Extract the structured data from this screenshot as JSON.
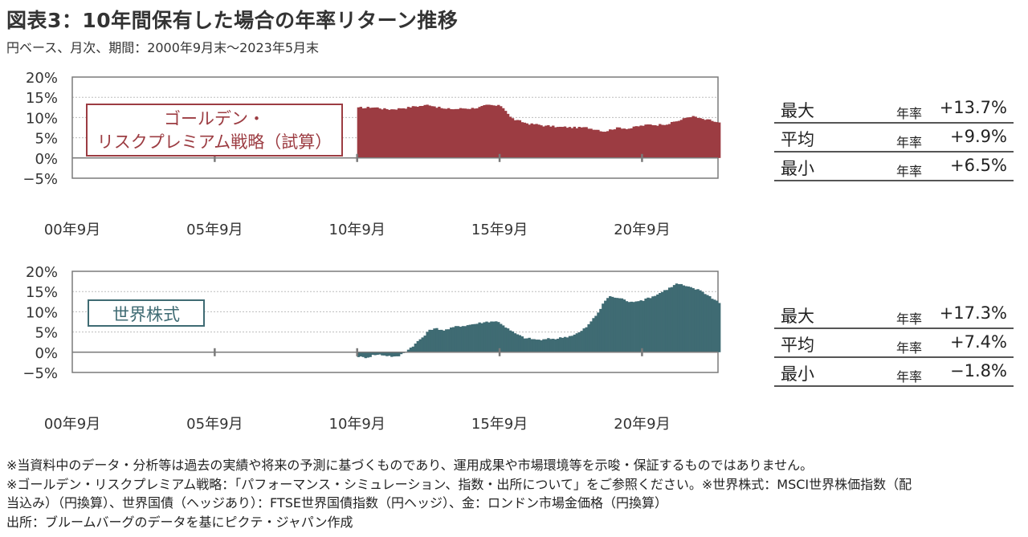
{
  "header": {
    "title": "図表3：10年間保有した場合の年率リターン推移",
    "subtitle": "円ベース、月次、期間：2000年9月末～2023年5月末"
  },
  "colors": {
    "series1": "#9c3c42",
    "series2": "#3f6b73",
    "axis": "#7a7a7a",
    "grid": "#bdbdbd"
  },
  "chart_data": [
    {
      "type": "area",
      "series": [
        {
          "name": "ゴールデン・リスクプレミアム戦略（試算）",
          "color": "#9c3c42"
        }
      ],
      "label_lines": [
        "ゴールデン・",
        "リスクプレミアム戦略（試算）"
      ],
      "x_labels": [
        "00年9月",
        "05年9月",
        "10年9月",
        "15年9月",
        "20年9月"
      ],
      "y_labels": [
        "20%",
        "15%",
        "10%",
        "5%",
        "0%",
        "−5%"
      ],
      "ylim": [
        -5,
        20
      ],
      "x_range": [
        "2000-09",
        "2023-05"
      ],
      "data_start": "2010-09",
      "points": [
        [
          "2010-09",
          12.3
        ],
        [
          "2011-03",
          12.6
        ],
        [
          "2011-09",
          12.0
        ],
        [
          "2012-03",
          12.4
        ],
        [
          "2012-09",
          12.8
        ],
        [
          "2013-03",
          13.2
        ],
        [
          "2013-09",
          12.0
        ],
        [
          "2014-03",
          12.2
        ],
        [
          "2014-09",
          12.4
        ],
        [
          "2015-03",
          12.9
        ],
        [
          "2015-09",
          12.8
        ],
        [
          "2015-11",
          11.5
        ],
        [
          "2016-01",
          9.6
        ],
        [
          "2016-06",
          8.7
        ],
        [
          "2017-01",
          8.1
        ],
        [
          "2017-09",
          7.6
        ],
        [
          "2018-06",
          7.5
        ],
        [
          "2019-01",
          7.2
        ],
        [
          "2019-04",
          6.6
        ],
        [
          "2019-09",
          7.5
        ],
        [
          "2020-03",
          7.4
        ],
        [
          "2020-09",
          8.1
        ],
        [
          "2021-03",
          8.3
        ],
        [
          "2021-09",
          8.8
        ],
        [
          "2022-03",
          10.0
        ],
        [
          "2022-05",
          10.5
        ],
        [
          "2022-09",
          9.5
        ],
        [
          "2023-01",
          9.2
        ],
        [
          "2023-05",
          8.5
        ]
      ],
      "stats": [
        {
          "label": "最大",
          "unit": "年率",
          "value": "+13.7%"
        },
        {
          "label": "平均",
          "unit": "年率",
          "value": "+9.9%"
        },
        {
          "label": "最小",
          "unit": "年率",
          "value": "+6.5%"
        }
      ]
    },
    {
      "type": "area",
      "series": [
        {
          "name": "世界株式",
          "color": "#3f6b73"
        }
      ],
      "label_lines": [
        "世界株式"
      ],
      "x_labels": [
        "00年9月",
        "05年9月",
        "10年9月",
        "15年9月",
        "20年9月"
      ],
      "y_labels": [
        "20%",
        "15%",
        "10%",
        "5%",
        "0%",
        "−5%"
      ],
      "ylim": [
        -5,
        20
      ],
      "x_range": [
        "2000-09",
        "2023-05"
      ],
      "data_start": "2010-09",
      "points": [
        [
          "2010-09",
          -1.0
        ],
        [
          "2010-11",
          -1.5
        ],
        [
          "2011-03",
          -0.5
        ],
        [
          "2011-09",
          -0.8
        ],
        [
          "2012-01",
          -1.3
        ],
        [
          "2012-03",
          -0.3
        ],
        [
          "2012-06",
          1.0
        ],
        [
          "2012-09",
          2.5
        ],
        [
          "2013-01",
          4.5
        ],
        [
          "2013-03",
          6.0
        ],
        [
          "2013-09",
          5.5
        ],
        [
          "2014-03",
          6.5
        ],
        [
          "2014-09",
          7.0
        ],
        [
          "2015-03",
          7.6
        ],
        [
          "2015-06",
          7.8
        ],
        [
          "2015-09",
          7.0
        ],
        [
          "2016-01",
          5.0
        ],
        [
          "2016-06",
          3.5
        ],
        [
          "2017-01",
          3.0
        ],
        [
          "2017-09",
          3.5
        ],
        [
          "2018-01",
          4.0
        ],
        [
          "2018-06",
          5.0
        ],
        [
          "2018-09",
          6.5
        ],
        [
          "2019-01",
          9.5
        ],
        [
          "2019-04",
          12.5
        ],
        [
          "2019-06",
          14.0
        ],
        [
          "2019-09",
          13.5
        ],
        [
          "2020-01",
          13.0
        ],
        [
          "2020-03",
          12.0
        ],
        [
          "2020-06",
          13.0
        ],
        [
          "2020-09",
          13.0
        ],
        [
          "2021-01",
          14.0
        ],
        [
          "2021-06",
          15.5
        ],
        [
          "2021-11",
          17.1
        ],
        [
          "2022-03",
          16.0
        ],
        [
          "2022-09",
          15.2
        ],
        [
          "2023-01",
          13.5
        ],
        [
          "2023-05",
          12.2
        ]
      ],
      "stats": [
        {
          "label": "最大",
          "unit": "年率",
          "value": "+17.3%"
        },
        {
          "label": "平均",
          "unit": "年率",
          "value": "+7.4%"
        },
        {
          "label": "最小",
          "unit": "年率",
          "value": "−1.8%"
        }
      ]
    }
  ],
  "notes": [
    "※当資料中のデータ・分析等は過去の実績や将来の予測に基づくものであり、運用成果や市場環境等を示唆・保証するものではありません。",
    "※ゴールデン・リスクプレミアム戦略：「パフォーマンス・シミュレーション、指数・出所について」をご参照ください。※世界株式：MSCI世界株価指数（配",
    "当込み）（円換算）、世界国債（ヘッジあり）：FTSE世界国債指数（円ヘッジ）、金：ロンドン市場金価格（円換算）",
    "出所：ブルームバーグのデータを基にピクテ・ジャパン作成"
  ]
}
